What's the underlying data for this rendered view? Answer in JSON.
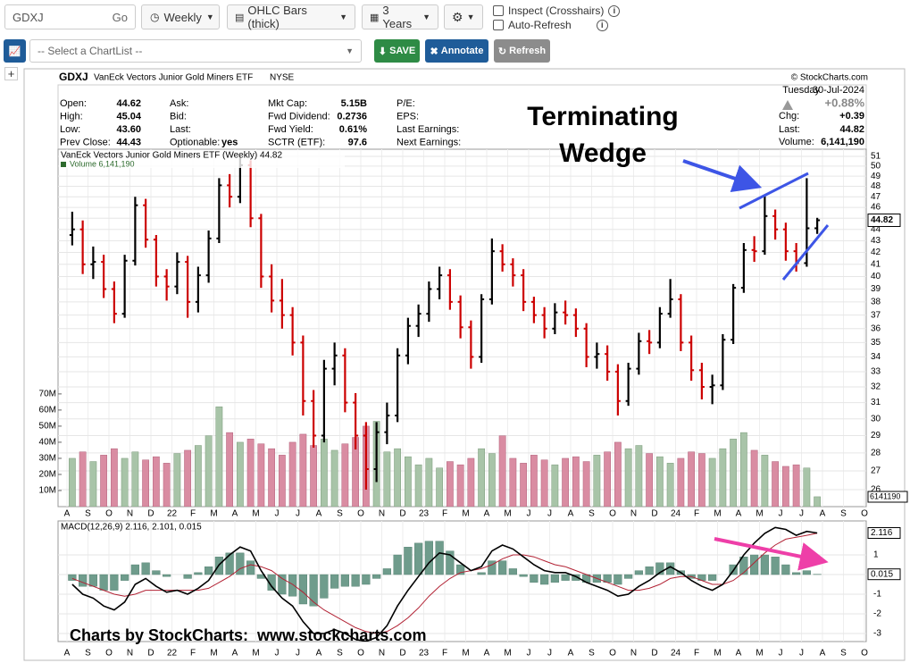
{
  "toolbar": {
    "symbol": "GDXJ",
    "go": "Go",
    "period": "Weekly",
    "chart_type": "OHLC Bars (thick)",
    "range": "3 Years",
    "inspect": "Inspect (Crosshairs)",
    "auto_refresh": "Auto-Refresh",
    "chartlist": "-- Select a ChartList --",
    "save": "SAVE",
    "annotate": "Annotate",
    "refresh": "Refresh"
  },
  "header": {
    "symbol": "GDXJ",
    "name": "VanEck Vectors Junior Gold Miners ETF",
    "exchange": "NYSE",
    "copyright": "© StockCharts.com"
  },
  "info": {
    "columns": [
      [
        {
          "label": "Open:",
          "value": "44.62"
        },
        {
          "label": "High:",
          "value": "45.04"
        },
        {
          "label": "Low:",
          "value": "43.60"
        },
        {
          "label": "Prev Close:",
          "value": "44.43"
        }
      ],
      [
        {
          "label": "Ask:"
        },
        {
          "label": "Bid:"
        },
        {
          "label": "Last:"
        },
        {
          "label": "Optionable:",
          "value": "yes"
        }
      ],
      [
        {
          "label": "Mkt Cap:",
          "value": "5.15B"
        },
        {
          "label": "Fwd Dividend:",
          "value": "0.2736"
        },
        {
          "label": "Fwd Yield:",
          "value": "0.61%"
        },
        {
          "label": "SCTR (ETF):",
          "value": "97.6"
        }
      ],
      [
        {
          "label": "P/E:"
        },
        {
          "label": "EPS:"
        },
        {
          "label": "Last Earnings:"
        },
        {
          "label": "Next Earnings:"
        }
      ]
    ]
  },
  "quote": {
    "day": "Tuesday",
    "date": "30-Jul-2024",
    "pct": "+0.88%",
    "chg_label": "Chg:",
    "chg": "+0.39",
    "last_label": "Last:",
    "last": "44.82",
    "volume_label": "Volume:",
    "volume": "6,141,190"
  },
  "annotation": [
    "Terminating",
    "Wedge"
  ],
  "footer": "Charts by StockCharts:  www.stockcharts.com",
  "x_labels": [
    "A",
    "S",
    "O",
    "N",
    "D",
    "22",
    "F",
    "M",
    "A",
    "M",
    "J",
    "J",
    "A",
    "S",
    "O",
    "N",
    "D",
    "23",
    "F",
    "M",
    "A",
    "M",
    "J",
    "J",
    "A",
    "S",
    "O",
    "N",
    "D",
    "24",
    "F",
    "M",
    "A",
    "M",
    "J",
    "J",
    "A",
    "S",
    "O"
  ],
  "chart_data": [
    {
      "type": "ohlc",
      "legend": "VanEck Vectors Junior Gold Miners ETF (Weekly) 44.82",
      "volume_legend": "Volume 6,141,190",
      "last_label": "44.82",
      "volume_last_label": "6141190",
      "log_scale": true,
      "grid": true,
      "up_color": "#000000",
      "down_color": "#cc0000",
      "volume_up_color": "#a8c4a8",
      "volume_down_color": "#d98ca2",
      "ylim": [
        25.12,
        51.74
      ],
      "yticks": [
        26,
        27,
        28,
        29,
        30,
        31,
        32,
        33,
        34,
        35,
        36,
        37,
        38,
        39,
        40,
        41,
        42,
        43,
        44,
        45,
        46,
        47,
        48,
        49,
        50,
        51
      ],
      "volume_ylim": [
        0,
        222000000
      ],
      "volume_yticks": [
        {
          "value": 10000000,
          "label": "10M"
        },
        {
          "value": 20000000,
          "label": "20M"
        },
        {
          "value": 30000000,
          "label": "30M"
        },
        {
          "value": 40000000,
          "label": "40M"
        },
        {
          "value": 50000000,
          "label": "50M"
        },
        {
          "value": 60000000,
          "label": "60M"
        },
        {
          "value": 70000000,
          "label": "70M"
        }
      ],
      "ohlc": [
        [
          43.5,
          45.6,
          42.6,
          44.0
        ],
        [
          44.0,
          44.8,
          40.2,
          41.0
        ],
        [
          41.0,
          42.5,
          39.8,
          41.2
        ],
        [
          41.2,
          41.8,
          38.3,
          39.0
        ],
        [
          39.0,
          39.6,
          36.4,
          37.1
        ],
        [
          37.1,
          41.8,
          36.8,
          41.3
        ],
        [
          41.3,
          47.0,
          40.9,
          46.2
        ],
        [
          46.2,
          46.8,
          42.4,
          43.1
        ],
        [
          43.1,
          43.5,
          39.2,
          40.0
        ],
        [
          40.0,
          40.6,
          38.1,
          39.2
        ],
        [
          39.2,
          42.0,
          38.6,
          41.2
        ],
        [
          41.2,
          41.7,
          36.8,
          38.0
        ],
        [
          38.0,
          40.8,
          37.2,
          40.1
        ],
        [
          40.1,
          43.9,
          39.5,
          43.2
        ],
        [
          43.2,
          48.8,
          42.8,
          48.1
        ],
        [
          48.1,
          49.2,
          46.0,
          47.0
        ],
        [
          47.0,
          51.0,
          46.4,
          50.1
        ],
        [
          50.1,
          50.6,
          44.2,
          45.0
        ],
        [
          45.0,
          45.4,
          39.1,
          40.0
        ],
        [
          40.0,
          41.0,
          37.2,
          38.1
        ],
        [
          38.1,
          39.8,
          36.0,
          37.0
        ],
        [
          37.0,
          37.6,
          34.1,
          35.0
        ],
        [
          35.0,
          35.5,
          30.2,
          31.1
        ],
        [
          31.1,
          31.8,
          28.3,
          29.0
        ],
        [
          29.0,
          33.8,
          28.6,
          33.2
        ],
        [
          33.2,
          35.0,
          32.1,
          34.1
        ],
        [
          34.1,
          34.6,
          30.4,
          31.0
        ],
        [
          31.0,
          31.6,
          28.2,
          29.0
        ],
        [
          29.0,
          29.8,
          26.0,
          27.1
        ],
        [
          27.1,
          29.8,
          26.4,
          29.2
        ],
        [
          29.2,
          31.0,
          28.5,
          30.2
        ],
        [
          30.2,
          34.6,
          29.8,
          34.1
        ],
        [
          34.1,
          36.8,
          33.5,
          36.2
        ],
        [
          36.2,
          37.8,
          35.4,
          37.1
        ],
        [
          37.1,
          39.6,
          36.5,
          39.0
        ],
        [
          39.0,
          40.8,
          38.2,
          40.1
        ],
        [
          40.1,
          40.6,
          37.4,
          38.0
        ],
        [
          38.0,
          38.5,
          35.3,
          36.1
        ],
        [
          36.1,
          36.6,
          33.2,
          34.0
        ],
        [
          34.0,
          38.6,
          33.6,
          38.2
        ],
        [
          38.2,
          43.2,
          37.8,
          42.1
        ],
        [
          42.1,
          42.7,
          40.4,
          41.0
        ],
        [
          41.0,
          41.5,
          39.2,
          40.1
        ],
        [
          40.1,
          40.6,
          37.3,
          38.0
        ],
        [
          38.0,
          38.4,
          36.4,
          37.0
        ],
        [
          37.0,
          37.6,
          35.3,
          36.0
        ],
        [
          36.0,
          37.9,
          35.6,
          37.2
        ],
        [
          37.2,
          38.1,
          36.3,
          37.0
        ],
        [
          37.0,
          37.5,
          35.4,
          36.0
        ],
        [
          36.0,
          36.4,
          33.3,
          34.0
        ],
        [
          34.0,
          35.0,
          33.2,
          34.2
        ],
        [
          34.2,
          34.8,
          32.4,
          33.0
        ],
        [
          33.0,
          33.5,
          30.2,
          31.1
        ],
        [
          31.1,
          33.6,
          30.8,
          33.2
        ],
        [
          33.2,
          35.7,
          32.8,
          35.1
        ],
        [
          35.1,
          35.9,
          34.2,
          35.0
        ],
        [
          35.0,
          37.6,
          34.6,
          37.1
        ],
        [
          37.1,
          39.8,
          36.8,
          38.2
        ],
        [
          38.2,
          38.6,
          34.4,
          35.0
        ],
        [
          35.0,
          35.5,
          32.4,
          33.1
        ],
        [
          33.1,
          33.6,
          31.2,
          32.0
        ],
        [
          32.0,
          32.8,
          30.9,
          32.1
        ],
        [
          32.1,
          35.6,
          31.8,
          35.2
        ],
        [
          35.2,
          39.4,
          34.9,
          39.1
        ],
        [
          39.1,
          42.8,
          38.7,
          42.2
        ],
        [
          42.2,
          43.4,
          41.2,
          42.1
        ],
        [
          42.1,
          47.2,
          41.8,
          45.2
        ],
        [
          45.2,
          45.8,
          43.1,
          44.0
        ],
        [
          44.0,
          44.6,
          41.3,
          42.1
        ],
        [
          42.1,
          42.8,
          40.4,
          41.1
        ],
        [
          41.1,
          48.8,
          40.8,
          44.1
        ],
        [
          44.1,
          45.04,
          43.6,
          44.82
        ]
      ],
      "volume": [
        30000000.0,
        34000000.0,
        28000000.0,
        32000000.0,
        36000000.0,
        30000000.0,
        34000000.0,
        29000000.0,
        31000000.0,
        27000000.0,
        33000000.0,
        35000000.0,
        38000000.0,
        44000000.0,
        62000000.0,
        46000000.0,
        40000000.0,
        42000000.0,
        39000000.0,
        36000000.0,
        32000000.0,
        40000000.0,
        45000000.0,
        38000000.0,
        42000000.0,
        35000000.0,
        39000000.0,
        43000000.0,
        50000000.0,
        53000000.0,
        34000000.0,
        36000000.0,
        31000000.0,
        26000000.0,
        30000000.0,
        24000000.0,
        28000000.0,
        26000000.0,
        30000000.0,
        36000000.0,
        33000000.0,
        44000000.0,
        30000000.0,
        27000000.0,
        32000000.0,
        29000000.0,
        26000000.0,
        30000000.0,
        31000000.0,
        28000000.0,
        32000000.0,
        34000000.0,
        40000000.0,
        36000000.0,
        38000000.0,
        33000000.0,
        31000000.0,
        27000000.0,
        30000000.0,
        34000000.0,
        33000000.0,
        30000000.0,
        36000000.0,
        42000000.0,
        46000000.0,
        35000000.0,
        32000000.0,
        28000000.0,
        25000000.0,
        26000000.0,
        24000000.0,
        6141190
      ]
    },
    {
      "type": "macd",
      "legend": "MACD(12,26,9) 2.116, 2.101, 0.015",
      "macd_color": "#000000",
      "signal_color": "#b22234",
      "histogram_color": "#6f9c8c",
      "ylim": [
        -3.41,
        2.73
      ],
      "yticks": [
        1,
        0,
        -1,
        -2,
        -3
      ],
      "last_labels": [
        "2.116",
        "0.015"
      ],
      "macd": [
        -0.5,
        -1.0,
        -1.2,
        -1.6,
        -1.8,
        -1.4,
        -0.5,
        -0.2,
        -0.6,
        -0.9,
        -0.8,
        -1.0,
        -0.7,
        -0.3,
        0.5,
        1.0,
        1.4,
        1.2,
        0.2,
        -0.6,
        -1.2,
        -1.6,
        -2.4,
        -3.0,
        -3.0,
        -2.8,
        -3.0,
        -3.3,
        -3.4,
        -3.2,
        -2.6,
        -1.6,
        -0.8,
        -0.1,
        0.6,
        1.1,
        1.0,
        0.6,
        0.2,
        0.4,
        1.2,
        1.5,
        1.3,
        0.9,
        0.5,
        0.2,
        0.1,
        0.1,
        -0.1,
        -0.4,
        -0.6,
        -0.8,
        -1.1,
        -1.0,
        -0.6,
        -0.3,
        0.1,
        0.4,
        0.1,
        -0.3,
        -0.6,
        -0.8,
        -0.5,
        0.2,
        1.0,
        1.6,
        2.1,
        2.4,
        2.3,
        2.0,
        2.2,
        2.116
      ],
      "signal": [
        -0.2,
        -0.4,
        -0.6,
        -0.8,
        -1.0,
        -1.1,
        -1.0,
        -0.8,
        -0.8,
        -0.8,
        -0.8,
        -0.8,
        -0.8,
        -0.7,
        -0.4,
        -0.1,
        0.3,
        0.5,
        0.4,
        0.2,
        -0.2,
        -0.5,
        -0.9,
        -1.4,
        -1.8,
        -2.1,
        -2.4,
        -2.7,
        -2.9,
        -3.0,
        -2.9,
        -2.6,
        -2.2,
        -1.7,
        -1.1,
        -0.6,
        -0.2,
        0.1,
        0.2,
        0.3,
        0.5,
        0.8,
        1.0,
        1.0,
        0.9,
        0.7,
        0.5,
        0.4,
        0.2,
        0.0,
        -0.2,
        -0.4,
        -0.6,
        -0.8,
        -0.8,
        -0.7,
        -0.5,
        -0.2,
        -0.1,
        -0.1,
        -0.3,
        -0.5,
        -0.5,
        -0.3,
        0.1,
        0.6,
        1.1,
        1.5,
        1.8,
        1.9,
        2.0,
        2.101
      ],
      "histogram": [
        -0.3,
        -0.6,
        -0.6,
        -0.8,
        -0.8,
        -0.3,
        0.5,
        0.6,
        0.2,
        -0.1,
        0,
        -0.2,
        0.1,
        0.4,
        0.9,
        1.1,
        1.1,
        0.7,
        -0.2,
        -0.8,
        -1.0,
        -1.1,
        -1.5,
        -1.6,
        -1.2,
        -0.7,
        -0.6,
        -0.6,
        -0.5,
        -0.2,
        0.3,
        1.0,
        1.4,
        1.6,
        1.7,
        1.7,
        1.2,
        0.5,
        0,
        0.1,
        0.7,
        0.7,
        0.3,
        -0.1,
        -0.4,
        -0.5,
        -0.4,
        -0.3,
        -0.3,
        -0.4,
        -0.4,
        -0.4,
        -0.5,
        -0.2,
        0.2,
        0.4,
        0.6,
        0.6,
        0.2,
        -0.2,
        -0.3,
        -0.3,
        0,
        0.5,
        0.9,
        1.0,
        1.0,
        0.9,
        0.5,
        0.1,
        0.2,
        0.015
      ]
    }
  ]
}
